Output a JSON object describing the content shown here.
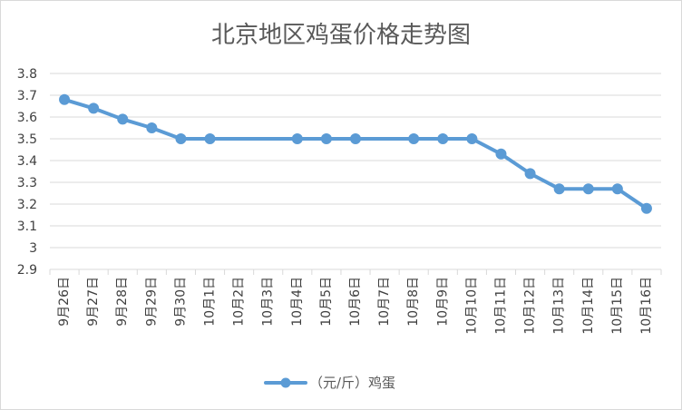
{
  "chart_data": {
    "type": "line",
    "title": "北京地区鸡蛋价格走势图",
    "xlabel": "",
    "ylabel": "",
    "ylim": [
      2.9,
      3.8
    ],
    "ytick_step": 0.1,
    "yticks": [
      "2.9",
      "3",
      "3.1",
      "3.2",
      "3.3",
      "3.4",
      "3.5",
      "3.6",
      "3.7",
      "3.8"
    ],
    "categories": [
      "9月26日",
      "9月27日",
      "9月28日",
      "9月29日",
      "9月30日",
      "10月1日",
      "10月2日",
      "10月3日",
      "10月4日",
      "10月5日",
      "10月6日",
      "10月7日",
      "10月8日",
      "10月9日",
      "10月10日",
      "10月11日",
      "10月12日",
      "10月13日",
      "10月14日",
      "10月15日",
      "10月16日"
    ],
    "series": [
      {
        "name": "（元/斤）鸡蛋",
        "color": "#5b9bd5",
        "values": [
          3.68,
          3.64,
          3.59,
          3.55,
          3.5,
          3.5,
          null,
          null,
          3.5,
          3.5,
          3.5,
          null,
          3.5,
          3.5,
          3.5,
          3.43,
          3.34,
          3.27,
          3.27,
          3.27,
          3.18
        ]
      }
    ],
    "grid": true,
    "legend_position": "bottom"
  },
  "colors": {
    "grid": "#d9d9d9",
    "axis_text": "#404040",
    "title": "#595959"
  }
}
